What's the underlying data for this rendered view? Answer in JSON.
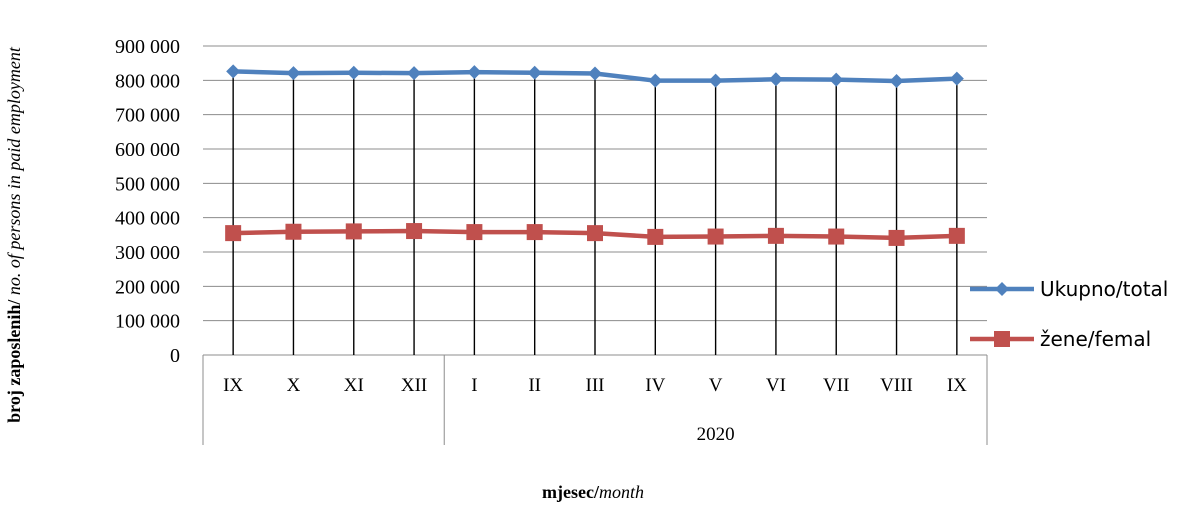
{
  "chart_data": {
    "type": "line",
    "title": "",
    "xlabel": {
      "bold": "mjesec/",
      "italic": "month"
    },
    "ylabel": {
      "bold": "broj zaposlenih/ ",
      "italic": "no. of persons in paid employment"
    },
    "ylim": [
      0,
      900000
    ],
    "yticks": [
      "0",
      "100 000",
      "200 000",
      "300 000",
      "400 000",
      "500 000",
      "600 000",
      "700 000",
      "800 000",
      "900 000"
    ],
    "categories": [
      "IX",
      "X",
      "XI",
      "XII",
      "I",
      "II",
      "III",
      "IV",
      "V",
      "VI",
      "VII",
      "VIII",
      "IX"
    ],
    "year_label": "2020",
    "grid": true,
    "drop_lines": true,
    "legend_position": "right",
    "series": [
      {
        "name": "Ukupno/total",
        "color": "#4F81BD",
        "marker": "diamond",
        "values": [
          826000,
          821000,
          822000,
          821000,
          824000,
          822000,
          820000,
          799000,
          799000,
          803000,
          802000,
          798000,
          805000
        ]
      },
      {
        "name": "žene/femal",
        "color": "#C0504D",
        "marker": "square",
        "values": [
          355000,
          359000,
          360000,
          361000,
          358000,
          358000,
          355000,
          344000,
          345000,
          347000,
          345000,
          341000,
          347000
        ]
      }
    ]
  }
}
